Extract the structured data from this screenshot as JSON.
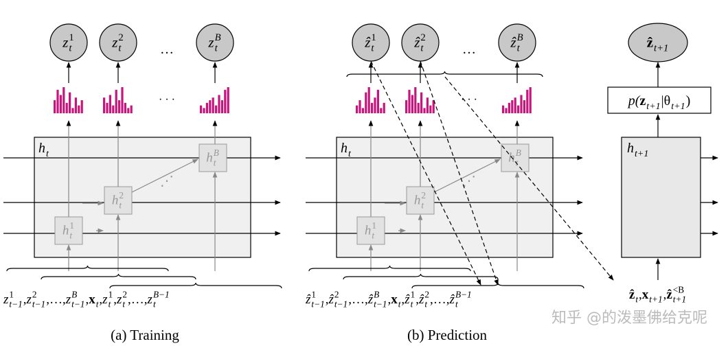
{
  "training": {
    "caption": "(a) Training",
    "outputs": [
      {
        "base": "z",
        "sup": "1",
        "sub": "t"
      },
      {
        "base": "z",
        "sup": "2",
        "sub": "t"
      },
      {
        "base": "z",
        "sup": "B",
        "sub": "t"
      }
    ],
    "output_ellipsis": "…",
    "histogram_ellipsis": "· · ·",
    "hidden": {
      "base": "h",
      "sub": "t"
    },
    "cells": [
      {
        "base": "h",
        "sup": "1",
        "sub": "t"
      },
      {
        "base": "h",
        "sup": "2",
        "sub": "t"
      },
      {
        "base": "h",
        "sup": "B",
        "sub": "t"
      }
    ],
    "cell_ellipsis": "⋰",
    "inputs": {
      "separator": ", ",
      "terms": [
        {
          "base": "z",
          "sup": "1",
          "sub": "t−1"
        },
        {
          "base": "z",
          "sup": "2",
          "sub": "t−1"
        },
        {
          "base": "…"
        },
        {
          "base": "z",
          "sup": "B",
          "sub": "t−1"
        },
        {
          "base": "x",
          "sub": "t",
          "bold": true
        },
        {
          "base": "z",
          "sup": "1",
          "sub": "t"
        },
        {
          "base": "z",
          "sup": "2",
          "sub": "t"
        },
        {
          "base": "…"
        },
        {
          "base": "z",
          "sup": "B−1",
          "sub": "t"
        }
      ]
    }
  },
  "prediction": {
    "caption": "(b) Prediction",
    "outputs": [
      {
        "base": "ẑ",
        "sup": "1",
        "sub": "t"
      },
      {
        "base": "ẑ",
        "sup": "2",
        "sub": "t"
      },
      {
        "base": "ẑ",
        "sup": "B",
        "sub": "t"
      }
    ],
    "output_ellipsis": "…",
    "histogram_ellipsis": "· · ·",
    "hidden": {
      "base": "h",
      "sub": "t"
    },
    "cells": [
      {
        "base": "h",
        "sup": "1",
        "sub": "t"
      },
      {
        "base": "h",
        "sup": "2",
        "sub": "t"
      },
      {
        "base": "h",
        "sup": "B",
        "sub": "t"
      }
    ],
    "cell_ellipsis": "⋰",
    "inputs": {
      "separator": ", ",
      "terms": [
        {
          "base": "ẑ",
          "sup": "1",
          "sub": "t−1"
        },
        {
          "base": "ẑ",
          "sup": "2",
          "sub": "t−1"
        },
        {
          "base": "…"
        },
        {
          "base": "ẑ",
          "sup": "B",
          "sub": "t−1"
        },
        {
          "base": "x",
          "sub": "t",
          "bold": true
        },
        {
          "base": "ẑ",
          "sup": "1",
          "sub": "t"
        },
        {
          "base": "ẑ",
          "sup": "2",
          "sub": "t"
        },
        {
          "base": "…"
        },
        {
          "base": "ẑ",
          "sup": "B−1",
          "sub": "t"
        }
      ]
    }
  },
  "next": {
    "output": {
      "base": "ẑ",
      "sub": "t+1",
      "bold": true
    },
    "distribution": [
      {
        "base": "p("
      },
      {
        "base": "z",
        "sub": "t+1",
        "bold": true
      },
      {
        "base": "|θ",
        "sub": "t+1"
      },
      {
        "base": ")"
      }
    ],
    "hidden": {
      "base": "h",
      "sub": "t+1"
    },
    "inputs": {
      "separator": ", ",
      "terms": [
        {
          "base": "ẑ",
          "sub": "t",
          "bold": true
        },
        {
          "base": "x",
          "sub": "t+1",
          "bold": true
        },
        {
          "base": "ẑ",
          "sup": "<B",
          "sub": "t+1",
          "bold": true
        }
      ]
    }
  },
  "watermark": "知乎 @的泼墨佛给克呢"
}
